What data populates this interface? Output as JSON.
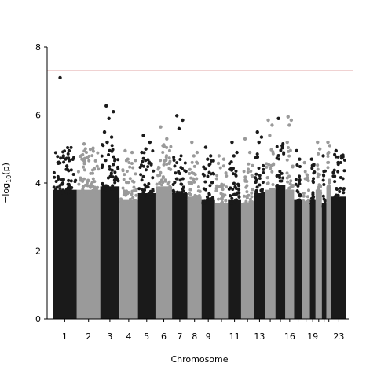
{
  "chart_data": {
    "type": "scatter",
    "title": "",
    "xlabel": "Chromosome",
    "ylabel_prefix": "−log",
    "ylabel_sub": "10",
    "ylabel_suffix": "(p)",
    "ylim": [
      0,
      8
    ],
    "yticks": [
      0,
      2,
      4,
      6,
      8
    ],
    "threshold": 7.3,
    "colors": {
      "dark": "#1a1a1a",
      "light": "#9a9a9a",
      "threshold": "#c44e4e"
    },
    "chromosomes": [
      {
        "chr": 1,
        "label": "1",
        "size": 249,
        "peak": 4.9,
        "tops": [
          7.1,
          4.95,
          4.8,
          4.6,
          4.5
        ]
      },
      {
        "chr": 2,
        "label": "2",
        "size": 242,
        "peak": 4.9,
        "tops": [
          5.15,
          5.0,
          4.75,
          4.7
        ]
      },
      {
        "chr": 3,
        "label": "3",
        "size": 198,
        "peak": 5.0,
        "tops": [
          6.27,
          6.1,
          5.9,
          5.5,
          5.35,
          5.2
        ]
      },
      {
        "chr": 4,
        "label": "4",
        "size": 190,
        "peak": 4.6,
        "tops": [
          4.95,
          4.9,
          4.7
        ]
      },
      {
        "chr": 5,
        "label": "5",
        "size": 181,
        "peak": 4.8,
        "tops": [
          5.4,
          5.2,
          5.0,
          4.9
        ]
      },
      {
        "chr": 6,
        "label": "6",
        "size": 171,
        "peak": 5.0,
        "tops": [
          5.65,
          5.3,
          5.1
        ]
      },
      {
        "chr": 7,
        "label": "7",
        "size": 159,
        "peak": 4.8,
        "tops": [
          5.98,
          5.85,
          5.6
        ]
      },
      {
        "chr": 8,
        "label": "8",
        "size": 145,
        "peak": 4.7,
        "tops": [
          5.2,
          4.9,
          4.8
        ]
      },
      {
        "chr": 9,
        "label": "9",
        "size": 138,
        "peak": 4.6,
        "tops": [
          5.05,
          4.8,
          4.7
        ]
      },
      {
        "chr": 10,
        "label": "",
        "size": 134,
        "peak": 4.5,
        "tops": [
          4.8,
          4.7
        ]
      },
      {
        "chr": 11,
        "label": "11",
        "size": 135,
        "peak": 4.6,
        "tops": [
          5.2,
          4.9,
          4.8
        ]
      },
      {
        "chr": 12,
        "label": "",
        "size": 133,
        "peak": 4.5,
        "tops": [
          5.3,
          4.9
        ]
      },
      {
        "chr": 13,
        "label": "13",
        "size": 114,
        "peak": 4.8,
        "tops": [
          5.5,
          5.35,
          5.2
        ]
      },
      {
        "chr": 14,
        "label": "",
        "size": 107,
        "peak": 4.9,
        "tops": [
          5.85,
          5.7,
          5.4
        ]
      },
      {
        "chr": 15,
        "label": "",
        "size": 102,
        "peak": 5.05,
        "tops": [
          5.9,
          5.1
        ]
      },
      {
        "chr": 16,
        "label": "16",
        "size": 90,
        "peak": 4.9,
        "tops": [
          5.95,
          5.85,
          5.7,
          5.2
        ]
      },
      {
        "chr": 17,
        "label": "",
        "size": 83,
        "peak": 4.6,
        "tops": [
          4.95,
          4.7
        ]
      },
      {
        "chr": 18,
        "label": "",
        "size": 80,
        "peak": 4.5,
        "tops": [
          4.6
        ]
      },
      {
        "chr": 19,
        "label": "19",
        "size": 59,
        "peak": 4.6,
        "tops": [
          4.7,
          4.55
        ]
      },
      {
        "chr": 20,
        "label": "",
        "size": 64,
        "peak": 4.9,
        "tops": [
          5.2,
          5.0
        ]
      },
      {
        "chr": 21,
        "label": "",
        "size": 47,
        "peak": 4.5,
        "tops": [
          4.8
        ]
      },
      {
        "chr": 22,
        "label": "",
        "size": 51,
        "peak": 5.0,
        "tops": [
          5.2,
          5.1,
          4.9
        ]
      },
      {
        "chr": 23,
        "label": "23",
        "size": 155,
        "peak": 4.7,
        "tops": [
          4.95,
          4.8,
          4.6
        ]
      }
    ]
  }
}
